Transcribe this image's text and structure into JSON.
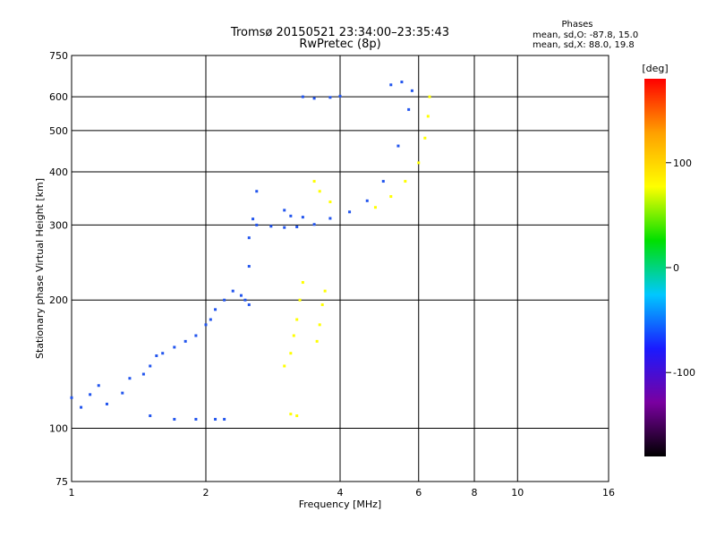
{
  "chart_data": {
    "type": "scatter",
    "title_line1": "Tromsø 20150521 23:34:00–23:35:43",
    "title_line2": "RwPretec (8p)",
    "xlabel": "Frequency [MHz]",
    "ylabel": "Stationary phase Virtual Height [km]",
    "x_scale": "log2",
    "y_scale": "log",
    "xlim": [
      1,
      16
    ],
    "ylim": [
      75,
      750
    ],
    "x_ticks": [
      1,
      2,
      4,
      6,
      8,
      10,
      16
    ],
    "y_ticks": [
      75,
      100,
      200,
      300,
      400,
      500,
      600,
      750
    ],
    "grid": true,
    "phases": {
      "header": "Phases",
      "line_o": "mean, sd,O: -87.8, 15.0",
      "line_x": "mean, sd,X:  88.0, 19.8"
    },
    "colorbar": {
      "unit": "[deg]",
      "range": [
        -180,
        180
      ],
      "ticks": [
        100,
        0,
        -100
      ],
      "stops": [
        "#000000",
        "#7a00a0",
        "#1a1aff",
        "#00c8ff",
        "#00e000",
        "#ffff00",
        "#ffa000",
        "#ff0000"
      ]
    },
    "series": [
      {
        "name": "O",
        "color": "#2255ee",
        "points": [
          [
            1.0,
            118
          ],
          [
            1.05,
            112
          ],
          [
            1.1,
            120
          ],
          [
            1.15,
            126
          ],
          [
            1.2,
            114
          ],
          [
            1.3,
            121
          ],
          [
            1.35,
            131
          ],
          [
            1.45,
            134
          ],
          [
            1.5,
            140
          ],
          [
            1.55,
            148
          ],
          [
            1.6,
            150
          ],
          [
            1.7,
            155
          ],
          [
            1.8,
            160
          ],
          [
            1.9,
            165
          ],
          [
            2.0,
            175
          ],
          [
            2.05,
            180
          ],
          [
            2.1,
            190
          ],
          [
            2.2,
            200
          ],
          [
            2.3,
            210
          ],
          [
            2.4,
            205
          ],
          [
            2.45,
            200
          ],
          [
            2.5,
            195
          ],
          [
            2.5,
            240
          ],
          [
            2.5,
            280
          ],
          [
            2.55,
            310
          ],
          [
            2.6,
            360
          ],
          [
            1.5,
            107
          ],
          [
            1.7,
            105
          ],
          [
            1.9,
            105
          ],
          [
            2.1,
            105
          ],
          [
            2.2,
            105
          ],
          [
            2.6,
            300
          ],
          [
            2.8,
            298
          ],
          [
            3.0,
            296
          ],
          [
            3.2,
            297
          ],
          [
            3.5,
            301
          ],
          [
            3.8,
            311
          ],
          [
            4.2,
            322
          ],
          [
            4.6,
            342
          ],
          [
            5.0,
            380
          ],
          [
            5.4,
            460
          ],
          [
            5.7,
            560
          ],
          [
            5.8,
            620
          ],
          [
            3.0,
            325
          ],
          [
            3.1,
            315
          ],
          [
            3.3,
            313
          ],
          [
            3.3,
            600
          ],
          [
            3.5,
            595
          ],
          [
            3.8,
            598
          ],
          [
            4.0,
            602
          ],
          [
            5.2,
            640
          ],
          [
            5.5,
            650
          ]
        ]
      },
      {
        "name": "X",
        "color": "#ffff00",
        "points": [
          [
            3.0,
            140
          ],
          [
            3.1,
            150
          ],
          [
            3.15,
            165
          ],
          [
            3.2,
            180
          ],
          [
            3.25,
            200
          ],
          [
            3.3,
            220
          ],
          [
            3.1,
            108
          ],
          [
            3.2,
            107
          ],
          [
            3.55,
            160
          ],
          [
            3.6,
            175
          ],
          [
            3.65,
            195
          ],
          [
            3.7,
            210
          ],
          [
            3.5,
            380
          ],
          [
            3.6,
            360
          ],
          [
            3.8,
            340
          ],
          [
            4.8,
            330
          ],
          [
            5.2,
            350
          ],
          [
            5.6,
            380
          ],
          [
            6.0,
            420
          ],
          [
            6.2,
            480
          ],
          [
            6.3,
            540
          ],
          [
            6.35,
            600
          ]
        ]
      }
    ]
  }
}
